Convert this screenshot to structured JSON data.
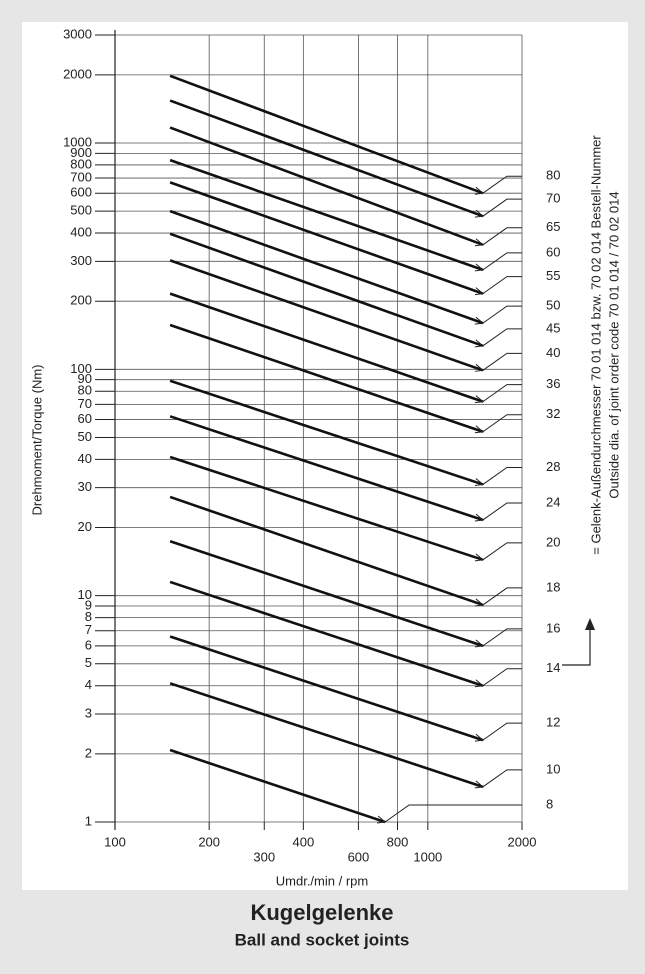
{
  "chart_data": {
    "type": "line",
    "title": "Kugelgelenke",
    "subtitle": "Ball and socket joints",
    "x_label": "Umdr./min / rpm",
    "y_label": "Drehmoment/Torque  (Nm)",
    "annotation": [
      "= Gelenk-Außendurchmesser 70 01 014 bzw. 70 02 014 Bestell-Nummer",
      "Outside dia. of joint order code 70 01 014 / 70 02 014"
    ],
    "log_x": true,
    "log_y": true,
    "grid": true,
    "xlim": [
      100,
      2000
    ],
    "ylim": [
      1,
      3000
    ],
    "xticks": [
      100,
      200,
      300,
      400,
      600,
      800,
      1000,
      2000
    ],
    "yticks": [
      1,
      2,
      3,
      4,
      5,
      6,
      7,
      8,
      9,
      10,
      20,
      30,
      40,
      50,
      60,
      70,
      80,
      90,
      100,
      200,
      300,
      400,
      500,
      600,
      700,
      800,
      900,
      1000,
      2000,
      3000
    ],
    "series": [
      {
        "name": "80",
        "color": "#111111",
        "x": [
          150,
          1500
        ],
        "values": [
          1980,
          600
        ]
      },
      {
        "name": "70",
        "color": "#111111",
        "x": [
          150,
          1500
        ],
        "values": [
          1540,
          475
        ]
      },
      {
        "name": "65",
        "color": "#111111",
        "x": [
          150,
          1500
        ],
        "values": [
          1170,
          355
        ]
      },
      {
        "name": "60",
        "color": "#111111",
        "x": [
          150,
          1500
        ],
        "values": [
          840,
          275
        ]
      },
      {
        "name": "55",
        "color": "#111111",
        "x": [
          150,
          1500
        ],
        "values": [
          670,
          216
        ]
      },
      {
        "name": "50",
        "color": "#111111",
        "x": [
          150,
          1500
        ],
        "values": [
          500,
          160
        ]
      },
      {
        "name": "45",
        "color": "#111111",
        "x": [
          150,
          1500
        ],
        "values": [
          397,
          127
        ]
      },
      {
        "name": "40",
        "color": "#111111",
        "x": [
          150,
          1500
        ],
        "values": [
          303,
          99
        ]
      },
      {
        "name": "36",
        "color": "#111111",
        "x": [
          150,
          1500
        ],
        "values": [
          216,
          72
        ]
      },
      {
        "name": "32",
        "color": "#111111",
        "x": [
          150,
          1500
        ],
        "values": [
          157,
          53
        ]
      },
      {
        "name": "28",
        "color": "#111111",
        "x": [
          150,
          1500
        ],
        "values": [
          89,
          31
        ]
      },
      {
        "name": "24",
        "color": "#111111",
        "x": [
          150,
          1500
        ],
        "values": [
          62,
          21.6
        ]
      },
      {
        "name": "20",
        "color": "#111111",
        "x": [
          150,
          1500
        ],
        "values": [
          41,
          14.4
        ]
      },
      {
        "name": "18",
        "color": "#111111",
        "x": [
          150,
          1500
        ],
        "values": [
          27.3,
          9.1
        ]
      },
      {
        "name": "16",
        "color": "#111111",
        "x": [
          150,
          1500
        ],
        "values": [
          17.4,
          6
        ]
      },
      {
        "name": "14",
        "color": "#111111",
        "x": [
          150,
          1500
        ],
        "values": [
          11.5,
          4
        ]
      },
      {
        "name": "12",
        "color": "#111111",
        "x": [
          150,
          1500
        ],
        "values": [
          6.6,
          2.3
        ]
      },
      {
        "name": "10",
        "color": "#111111",
        "x": [
          150,
          1500
        ],
        "values": [
          4.1,
          1.43
        ]
      },
      {
        "name": "8",
        "color": "#111111",
        "x": [
          150,
          730
        ],
        "values": [
          2.08,
          1
        ]
      }
    ]
  }
}
